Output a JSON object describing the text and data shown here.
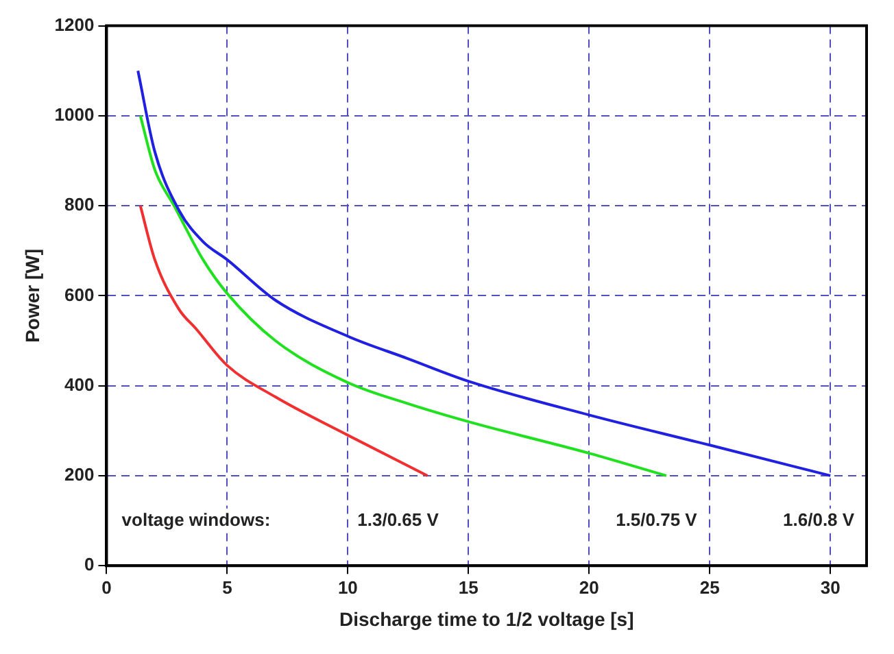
{
  "chart_data": {
    "type": "line",
    "xlabel": "Discharge time to 1/2 voltage [s]",
    "ylabel": "Power [W]",
    "xlim": [
      0,
      31.5
    ],
    "xticks": [
      0,
      5,
      10,
      15,
      20,
      25,
      30
    ],
    "ylim": [
      0,
      1200
    ],
    "yticks": [
      0,
      200,
      400,
      600,
      800,
      1000,
      1200
    ],
    "grid": true,
    "legend": false,
    "marker": "none",
    "line_style": "solid",
    "series": [
      {
        "color": "#2020e0",
        "x": [
          1.3,
          2,
          3,
          4,
          5,
          7,
          10,
          12.5,
          15,
          20,
          25,
          30
        ],
        "values": [
          1100,
          920,
          790,
          720,
          680,
          590,
          510,
          460,
          410,
          335,
          268,
          200
        ]
      },
      {
        "color": "#20e020",
        "x": [
          1.4,
          2,
          2.8,
          4,
          5,
          7,
          10,
          12.5,
          15,
          20,
          23.2
        ],
        "values": [
          1000,
          880,
          800,
          680,
          605,
          500,
          407,
          360,
          320,
          250,
          200
        ]
      },
      {
        "color": "#f03030",
        "x": [
          1.4,
          2,
          3,
          3.7,
          5,
          7,
          10,
          13.3
        ],
        "values": [
          800,
          680,
          570,
          527,
          445,
          375,
          290,
          200
        ]
      }
    ],
    "annotations": [
      "voltage windows:",
      "1.3/0.65 V",
      "1.5/0.75 V",
      "1.6/0.8 V"
    ]
  }
}
